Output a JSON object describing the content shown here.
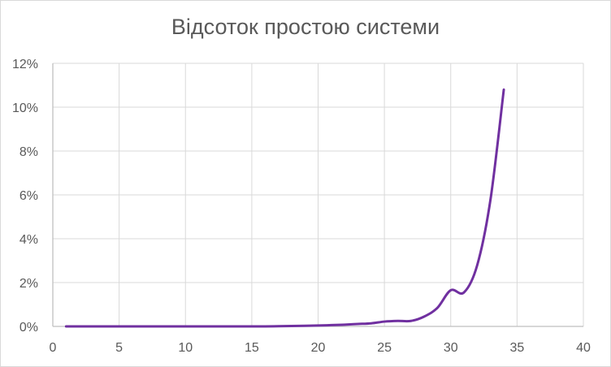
{
  "chart_data": {
    "type": "line",
    "title": "Відсоток простою системи",
    "xlabel": "",
    "ylabel": "",
    "xlim": [
      0,
      40
    ],
    "ylim": [
      0,
      0.12
    ],
    "x_ticks": [
      0,
      5,
      10,
      15,
      20,
      25,
      30,
      35,
      40
    ],
    "x_tick_labels": [
      "0",
      "5",
      "10",
      "15",
      "20",
      "25",
      "30",
      "35",
      "40"
    ],
    "y_ticks": [
      0,
      0.02,
      0.04,
      0.06,
      0.08,
      0.1,
      0.12
    ],
    "y_tick_labels": [
      "0%",
      "2%",
      "4%",
      "6%",
      "8%",
      "10%",
      "12%"
    ],
    "grid": true,
    "legend": "none",
    "series": [
      {
        "color": "#7030a0",
        "smooth": true,
        "points": [
          [
            1,
            0.0
          ],
          [
            2,
            0.0
          ],
          [
            3,
            0.0
          ],
          [
            4,
            0.0
          ],
          [
            5,
            0.0
          ],
          [
            6,
            0.0
          ],
          [
            7,
            0.0
          ],
          [
            8,
            0.0
          ],
          [
            9,
            0.0
          ],
          [
            10,
            0.0
          ],
          [
            11,
            0.0
          ],
          [
            12,
            0.0
          ],
          [
            13,
            0.0
          ],
          [
            14,
            0.0
          ],
          [
            15,
            0.0
          ],
          [
            16,
            0.0
          ],
          [
            17,
            0.0001
          ],
          [
            18,
            0.0002
          ],
          [
            19,
            0.0003
          ],
          [
            20,
            0.0004
          ],
          [
            21,
            0.0006
          ],
          [
            22,
            0.0008
          ],
          [
            23,
            0.0011
          ],
          [
            24,
            0.0014
          ],
          [
            25,
            0.0022
          ],
          [
            26,
            0.0025
          ],
          [
            27,
            0.0025
          ],
          [
            28,
            0.0045
          ],
          [
            29,
            0.0085
          ],
          [
            30,
            0.0165
          ],
          [
            31,
            0.0155
          ],
          [
            32,
            0.028
          ],
          [
            33,
            0.058
          ],
          [
            34,
            0.108
          ]
        ]
      }
    ]
  }
}
